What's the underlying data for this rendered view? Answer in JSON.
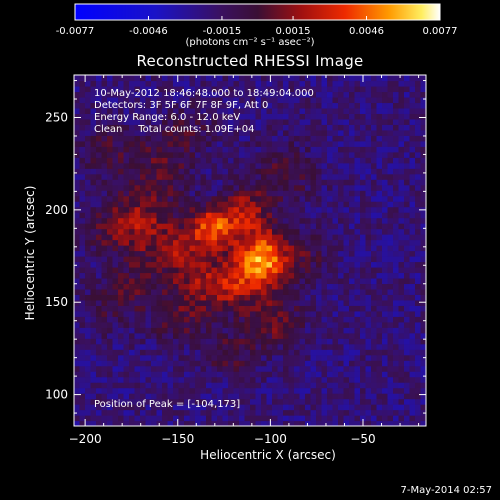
{
  "colorbar": {
    "ticks": [
      "-0.0077",
      "-0.0046",
      "-0.0015",
      "0.0015",
      "0.0046",
      "0.0077"
    ],
    "tick_values": [
      -0.0077,
      -0.0046,
      -0.0015,
      0.0015,
      0.0046,
      0.0077
    ],
    "range": [
      -0.0077,
      0.0077
    ],
    "unit_label": "(photons cm⁻² s⁻¹ asec⁻²)"
  },
  "footer": {
    "date": "7-May-2014 02:57"
  },
  "chart_data": {
    "type": "heatmap",
    "title": "Reconstructed RHESSI Image",
    "xlabel": "Heliocentric X (arcsec)",
    "ylabel": "Heliocentric Y (arcsec)",
    "xlim": [
      -206,
      -16
    ],
    "ylim": [
      83,
      273
    ],
    "xticks": [
      -200,
      -150,
      -100,
      -50
    ],
    "yticks": [
      100,
      150,
      200,
      250
    ],
    "grid": false,
    "info_lines": [
      "10-May-2012 18:46:48.000 to 18:49:04.000",
      "Detectors: 3F 5F 6F 7F 8F 9F, Att 0",
      "Energy Range: 6.0 - 12.0 keV",
      "Clean     Total counts: 1.09E+04"
    ],
    "peak_label": "Position of Peak = [-104,173]",
    "peak": [
      -104,
      173
    ],
    "sources": [
      {
        "x": -104,
        "y": 173,
        "peak": 0.0077,
        "sx": 10,
        "sy": 11
      },
      {
        "x": -130,
        "y": 191,
        "peak": 0.006,
        "sx": 9,
        "sy": 8
      },
      {
        "x": -112,
        "y": 200,
        "peak": 0.0038,
        "sx": 8,
        "sy": 9
      },
      {
        "x": -150,
        "y": 178,
        "peak": 0.0034,
        "sx": 13,
        "sy": 10
      },
      {
        "x": -168,
        "y": 196,
        "peak": 0.0029,
        "sx": 11,
        "sy": 12
      },
      {
        "x": -185,
        "y": 190,
        "peak": 0.0024,
        "sx": 10,
        "sy": 9
      },
      {
        "x": -138,
        "y": 158,
        "peak": 0.003,
        "sx": 12,
        "sy": 10
      },
      {
        "x": -98,
        "y": 140,
        "peak": 0.0027,
        "sx": 11,
        "sy": 10
      },
      {
        "x": -122,
        "y": 123,
        "peak": 0.0021,
        "sx": 10,
        "sy": 8
      },
      {
        "x": -92,
        "y": 220,
        "peak": 0.0019,
        "sx": 12,
        "sy": 12
      },
      {
        "x": -160,
        "y": 225,
        "peak": 0.0022,
        "sx": 13,
        "sy": 13
      },
      {
        "x": -190,
        "y": 232,
        "peak": 0.0018,
        "sx": 9,
        "sy": 11
      },
      {
        "x": -142,
        "y": 245,
        "peak": 0.0013,
        "sx": 10,
        "sy": 9
      },
      {
        "x": -175,
        "y": 158,
        "peak": 0.0019,
        "sx": 10,
        "sy": 11
      },
      {
        "x": -120,
        "y": 160,
        "peak": 0.0032,
        "sx": 9,
        "sy": 9
      },
      {
        "x": -150,
        "y": 140,
        "peak": 0.0018,
        "sx": 10,
        "sy": 9
      },
      {
        "x": -190,
        "y": 145,
        "peak": 0.0012,
        "sx": 8,
        "sy": 10
      },
      {
        "x": -80,
        "y": 175,
        "peak": 0.0015,
        "sx": 9,
        "sy": 9
      }
    ],
    "background_level": -0.0021
  }
}
